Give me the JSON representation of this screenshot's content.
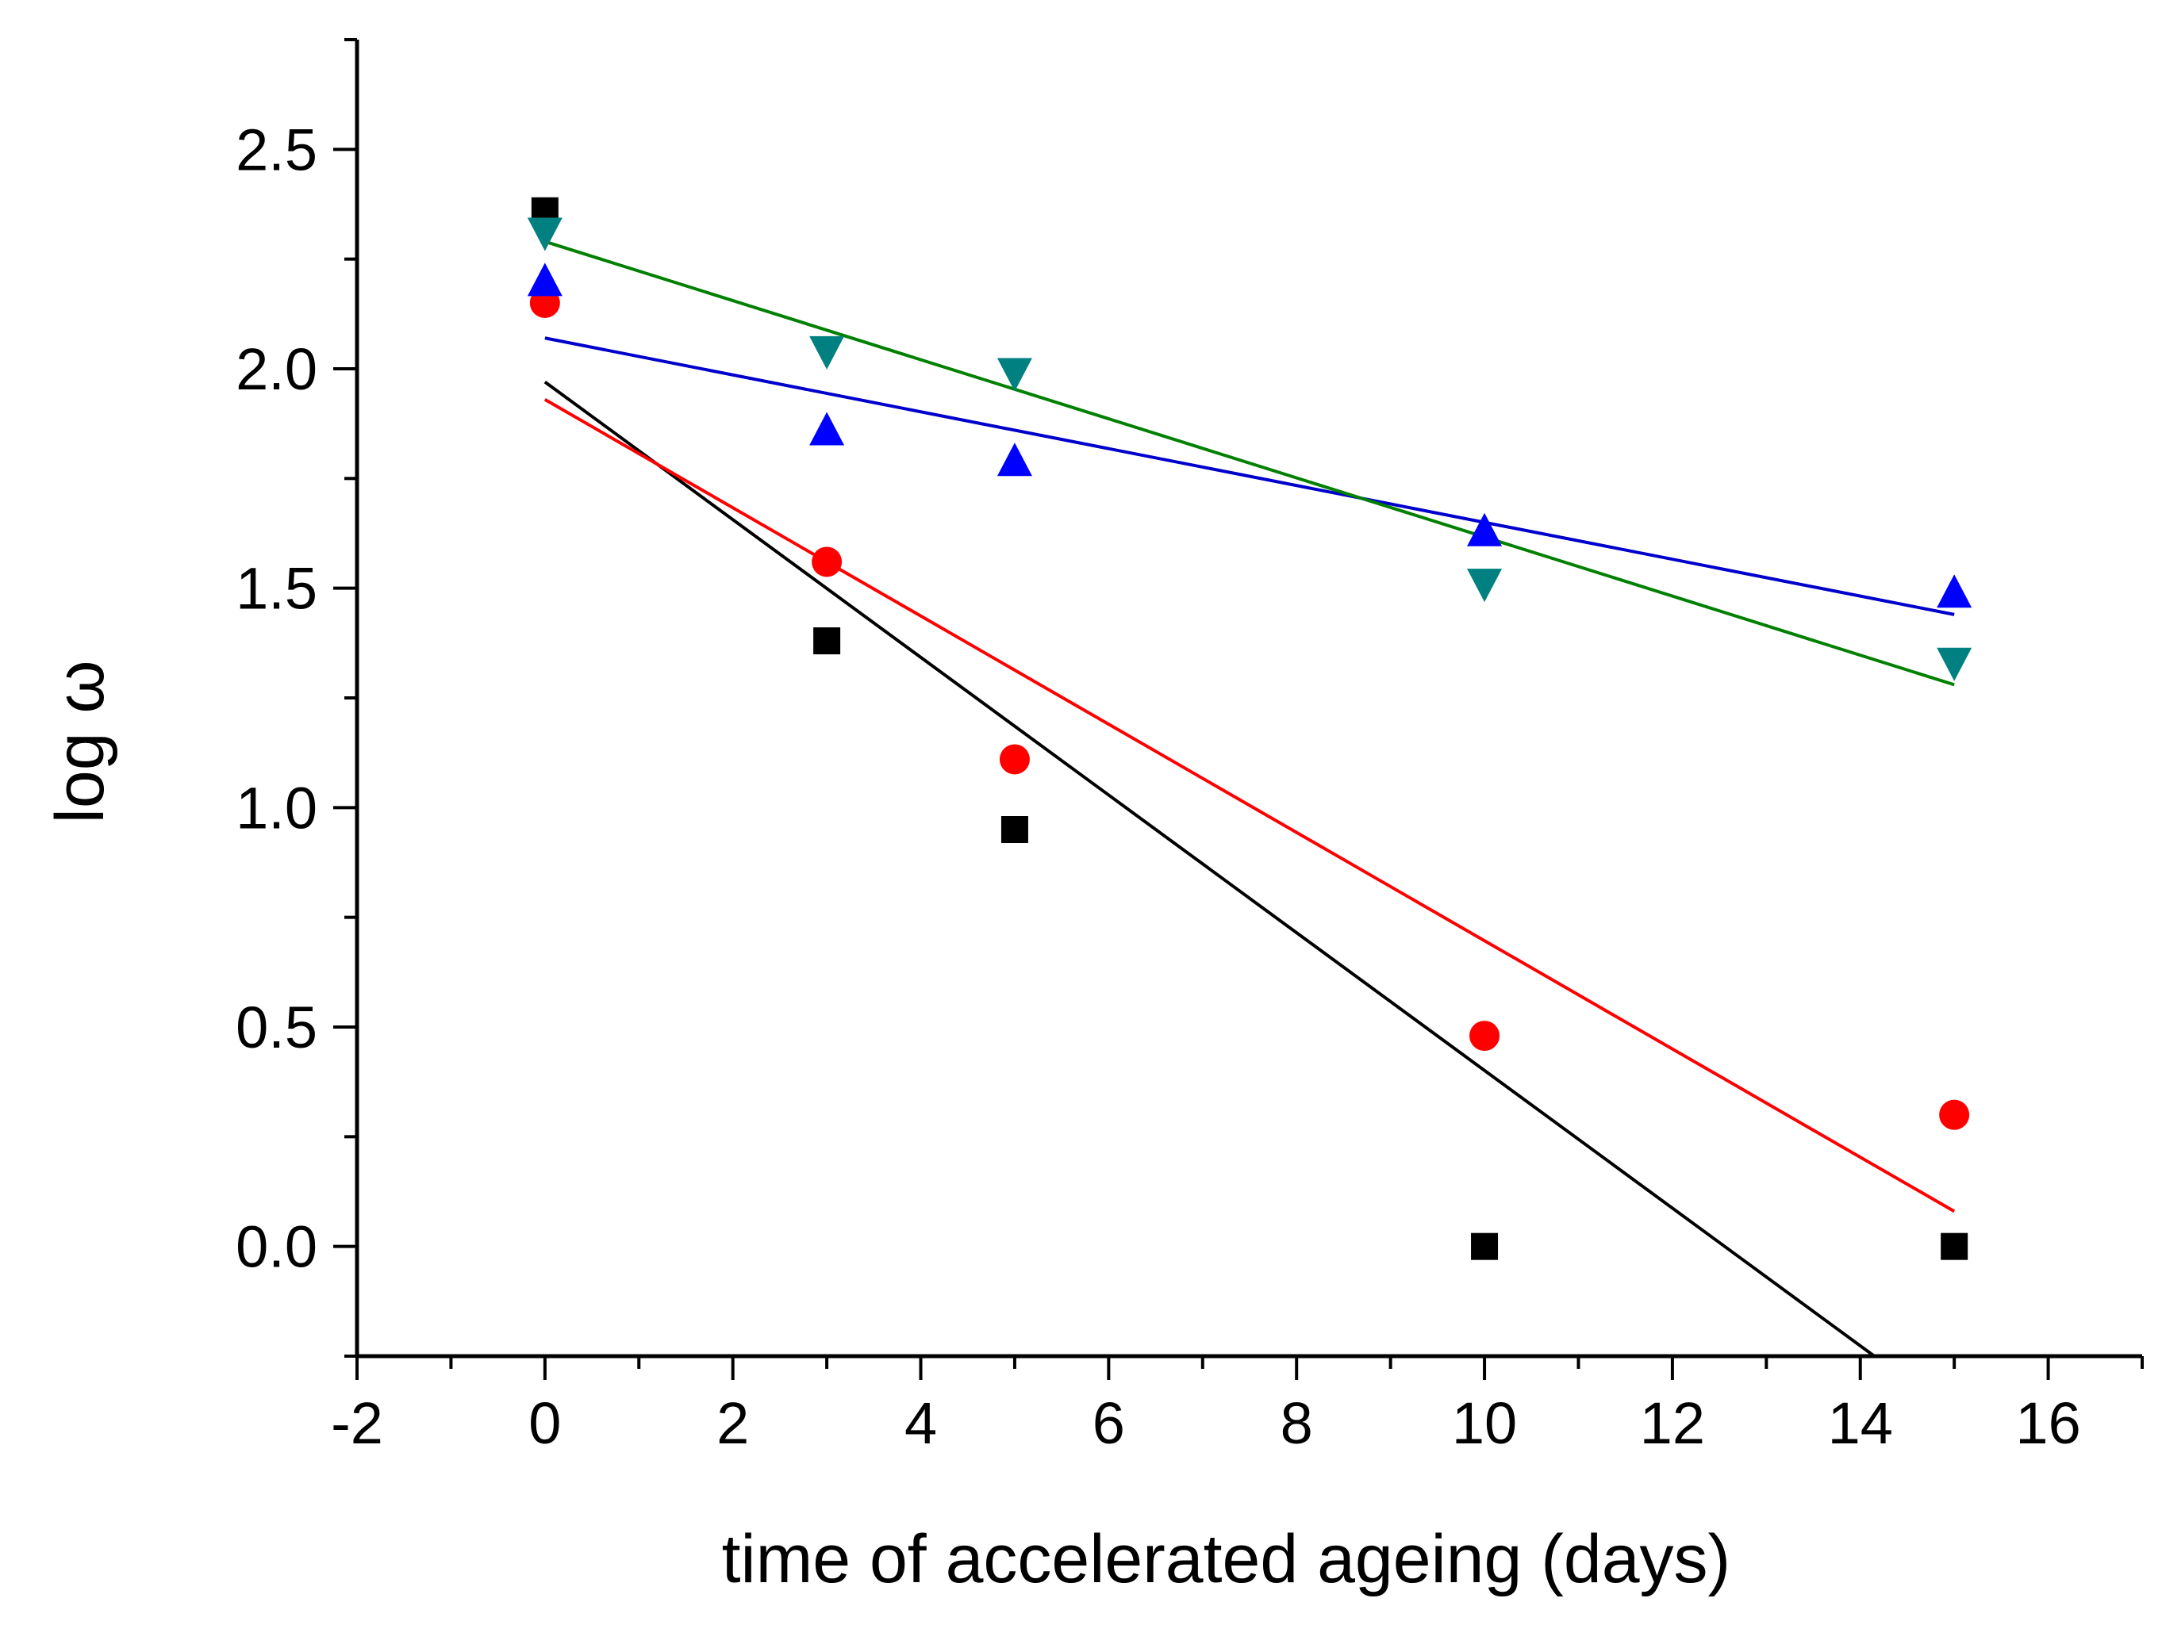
{
  "chart_data": {
    "type": "scatter",
    "title": "",
    "xlabel": "time of accelerated ageing (days)",
    "ylabel": "log ω",
    "xlim": [
      -2,
      17
    ],
    "ylim": [
      -0.25,
      2.75
    ],
    "x_ticks": [
      -2,
      0,
      2,
      4,
      6,
      8,
      10,
      12,
      14,
      16
    ],
    "x_tick_labels": [
      "-2",
      "0",
      "2",
      "4",
      "6",
      "8",
      "10",
      "12",
      "14",
      "16"
    ],
    "y_ticks": [
      0.0,
      0.5,
      1.0,
      1.5,
      2.0,
      2.5
    ],
    "y_tick_labels": [
      "0.0",
      "0.5",
      "1.0",
      "1.5",
      "2.0",
      "2.5"
    ],
    "grid": false,
    "series": [
      {
        "name": "black squares",
        "marker": "square",
        "color": "#000000",
        "x": [
          0,
          3,
          5,
          10,
          15
        ],
        "y": [
          2.36,
          1.38,
          0.95,
          0.0,
          0.0
        ],
        "fit": {
          "x": [
            0,
            14.15
          ],
          "y": [
            1.97,
            -0.25
          ],
          "color": "#000000"
        }
      },
      {
        "name": "red circles",
        "marker": "circle",
        "color": "#ff0000",
        "x": [
          0,
          3,
          5,
          10,
          15
        ],
        "y": [
          2.15,
          1.56,
          1.11,
          0.48,
          0.3
        ],
        "fit": {
          "x": [
            0,
            15
          ],
          "y": [
            1.93,
            0.08
          ],
          "color": "#ff0000"
        }
      },
      {
        "name": "blue triangles",
        "marker": "triangle-up",
        "color": "#0000ff",
        "x": [
          0,
          3,
          5,
          10,
          15
        ],
        "y": [
          2.2,
          1.86,
          1.79,
          1.63,
          1.49
        ],
        "fit": {
          "x": [
            0,
            15
          ],
          "y": [
            2.07,
            1.44
          ],
          "color": "#0000cc"
        }
      },
      {
        "name": "teal inverted triangles",
        "marker": "triangle-down",
        "color": "#008080",
        "x": [
          0,
          3,
          5,
          10,
          15
        ],
        "y": [
          2.31,
          2.04,
          1.99,
          1.51,
          1.33
        ],
        "fit": {
          "x": [
            0,
            15
          ],
          "y": [
            2.29,
            1.28
          ],
          "color": "#008000"
        }
      }
    ]
  }
}
